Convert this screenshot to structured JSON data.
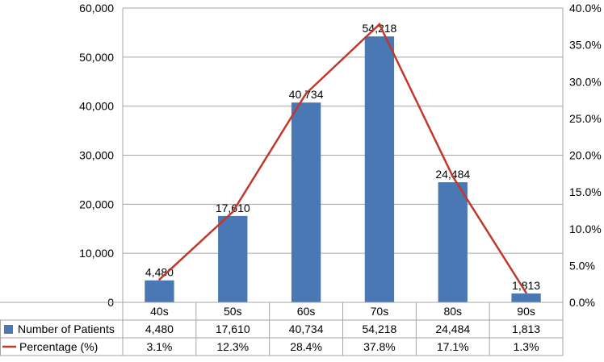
{
  "chart_data": {
    "type": "bar",
    "title": "",
    "categories": [
      "40s",
      "50s",
      "60s",
      "70s",
      "80s",
      "90s"
    ],
    "series": [
      {
        "name": "Number of Patients",
        "kind": "bar",
        "axis": "left",
        "color": "#4a78b5",
        "values": [
          4480,
          17610,
          40734,
          54218,
          24484,
          1813
        ],
        "value_labels": [
          "4,480",
          "17,610",
          "40,734",
          "54,218",
          "24,484",
          "1,813"
        ]
      },
      {
        "name": "Percentage (%)",
        "kind": "line",
        "axis": "right",
        "color": "#c0392b",
        "values": [
          3.1,
          12.3,
          28.4,
          37.8,
          17.1,
          1.3
        ],
        "value_labels": [
          "3.1%",
          "12.3%",
          "28.4%",
          "37.8%",
          "17.1%",
          "1.3%"
        ]
      }
    ],
    "y_left": {
      "range": [
        0,
        60000
      ],
      "ticks": [
        0,
        10000,
        20000,
        30000,
        40000,
        50000,
        60000
      ],
      "tick_labels": [
        "0",
        "10,000",
        "20,000",
        "30,000",
        "40,000",
        "50,000",
        "60,000"
      ]
    },
    "y_right": {
      "range": [
        0,
        40
      ],
      "ticks": [
        0,
        5,
        10,
        15,
        20,
        25,
        30,
        35,
        40
      ],
      "tick_labels": [
        "0.0%",
        "5.0%",
        "10.0%",
        "15.0%",
        "20.0%",
        "25.0%",
        "30.0%",
        "35.0%",
        "40.0%"
      ]
    },
    "grid": true,
    "legend": "data-table"
  }
}
